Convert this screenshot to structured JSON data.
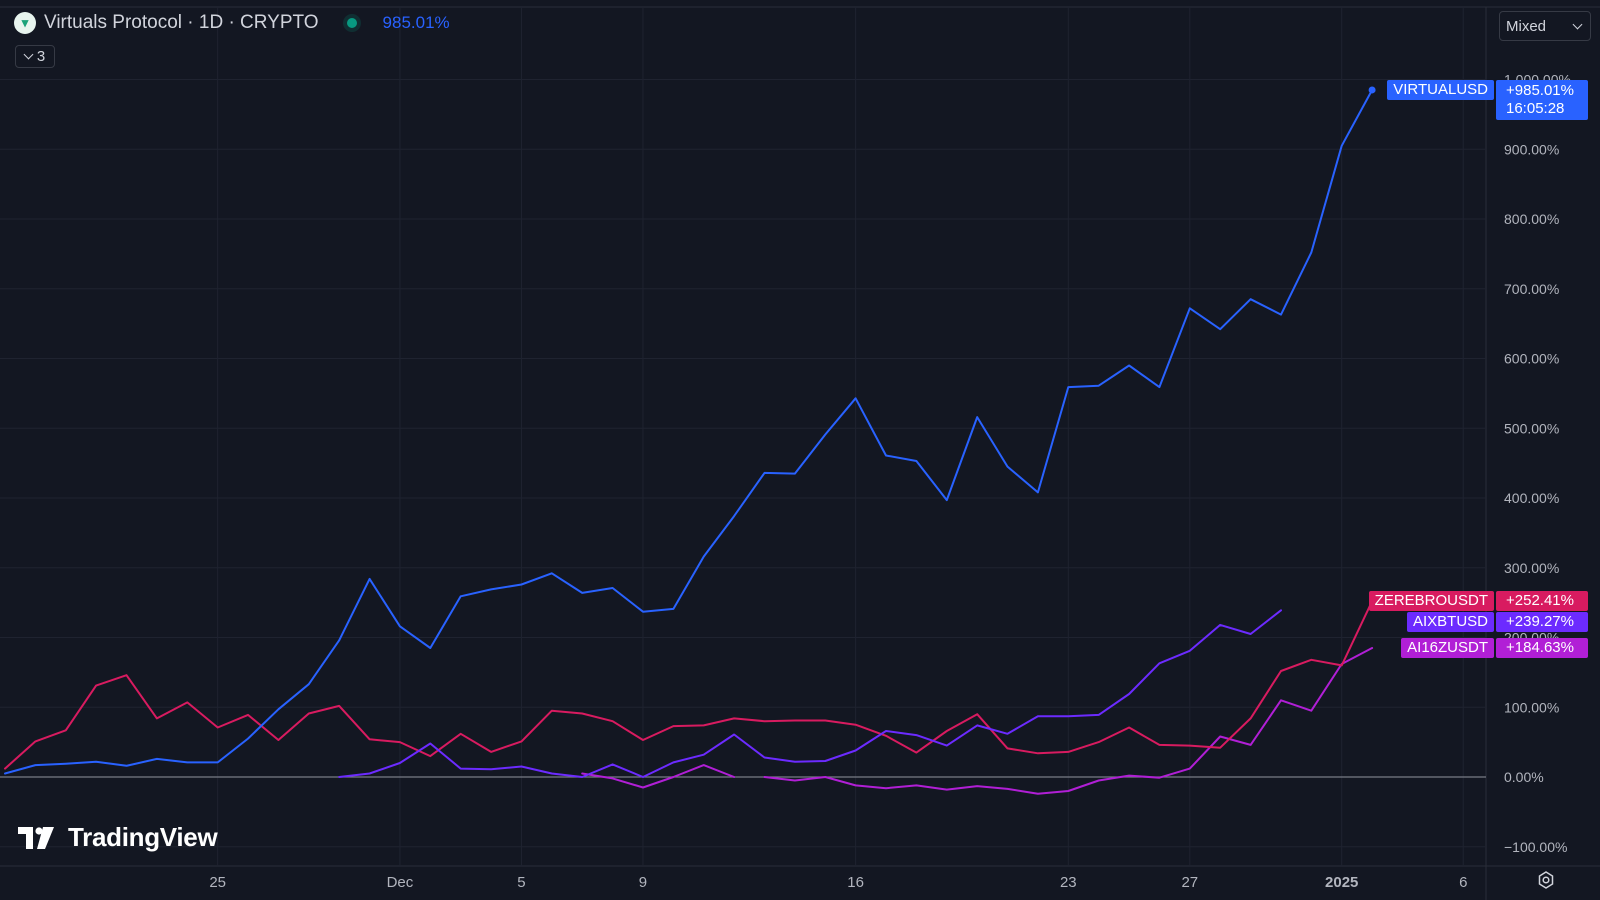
{
  "header": {
    "title": "Virtuals Protocol · 1D · CRYPTO",
    "value": "985.01%",
    "collapse_count": "3",
    "scale_mode": "Mixed",
    "watermark": "TradingView"
  },
  "colors": {
    "background": "#131722",
    "grid": "#2a2e39",
    "VIRTUALUSD": "#2962ff",
    "ZEREBROUSDT": "#d81b60",
    "AIXBTUSD": "#6c2bff",
    "AI16ZUSDT": "#b11fd6"
  },
  "labels": {
    "VIRTUALUSD": {
      "name": "VIRTUALUSD",
      "value": "+985.01%",
      "time": "16:05:28"
    },
    "ZEREBROUSDT": {
      "name": "ZEREBROUSDT",
      "value": "+252.41%"
    },
    "AIXBTUSD": {
      "name": "AIXBTUSD",
      "value": "+239.27%"
    },
    "AI16ZUSDT": {
      "name": "AI16ZUSDT",
      "value": "+184.63%"
    }
  },
  "chart_data": {
    "type": "line",
    "title": "Virtuals Protocol · 1D · CRYPTO",
    "ylabel": "",
    "xlabel": "",
    "y_unit": "%",
    "ylim": [
      -100,
      1000
    ],
    "y_ticks": [
      -100,
      0,
      100,
      200,
      300,
      400,
      500,
      600,
      700,
      800,
      900,
      1000
    ],
    "y_tick_labels": [
      "−100.00%",
      "0.00%",
      "100.00%",
      "200.00%",
      "300.00%",
      "400.00%",
      "500.00%",
      "600.00%",
      "700.00%",
      "800.00%",
      "900.00%",
      "1 000.00%"
    ],
    "x_start_date": "2024-11-18",
    "x_end_date": "2025-01-06",
    "x_ticks": [
      {
        "date": "2024-11-25",
        "label": "25"
      },
      {
        "date": "2024-12-01",
        "label": "Dec"
      },
      {
        "date": "2024-12-05",
        "label": "5"
      },
      {
        "date": "2024-12-09",
        "label": "9"
      },
      {
        "date": "2024-12-16",
        "label": "16"
      },
      {
        "date": "2024-12-23",
        "label": "23"
      },
      {
        "date": "2024-12-27",
        "label": "27"
      },
      {
        "date": "2025-01-01",
        "label": "2025"
      },
      {
        "date": "2025-01-05",
        "label": "6"
      }
    ],
    "zero_line": true,
    "grid": true,
    "series": [
      {
        "name": "VIRTUALUSD",
        "start_date": "2024-11-18",
        "values": [
          5,
          17,
          19,
          22,
          16,
          26,
          21,
          21,
          55,
          97,
          133,
          196,
          284,
          216,
          185,
          259,
          269,
          276,
          292,
          264,
          271,
          237,
          241,
          316,
          374,
          436,
          435,
          491,
          543,
          461,
          453,
          397,
          516,
          445,
          408,
          559,
          561,
          590,
          559,
          672,
          642,
          685,
          663,
          752,
          905,
          985
        ]
      },
      {
        "name": "ZEREBROUSDT",
        "start_date": "2024-11-18",
        "values": [
          12,
          51,
          67,
          131,
          146,
          84,
          107,
          71,
          89,
          53,
          91,
          102,
          54,
          50,
          30,
          62,
          36,
          51,
          95,
          91,
          80,
          53,
          73,
          74,
          84,
          80,
          81,
          81,
          75,
          59,
          35,
          66,
          90,
          41,
          34,
          36,
          50,
          71,
          46,
          45,
          42,
          84,
          152,
          168,
          160,
          252
        ]
      },
      {
        "name": "AIXBTUSD",
        "start_date": "2024-11-29",
        "values": [
          0,
          5,
          20,
          48,
          12,
          11,
          15,
          5,
          0,
          18,
          0,
          21,
          32,
          61,
          28,
          22,
          23,
          38,
          66,
          60,
          45,
          74,
          62,
          87,
          87,
          89,
          119,
          163,
          181,
          218,
          205,
          239
        ]
      },
      {
        "name": "AI16ZUSDT",
        "start_date": "2024-12-07",
        "values": [
          5,
          -2,
          -15,
          0,
          17,
          0
        ]
      },
      {
        "name": "AI16ZUSDT",
        "start_date": "2024-12-13",
        "values": [
          0,
          -5,
          0,
          -12,
          -16,
          -12,
          -18,
          -13,
          -17,
          -24,
          -20,
          -5,
          2,
          -1,
          12,
          58,
          46,
          110,
          95,
          162,
          185
        ]
      }
    ]
  }
}
